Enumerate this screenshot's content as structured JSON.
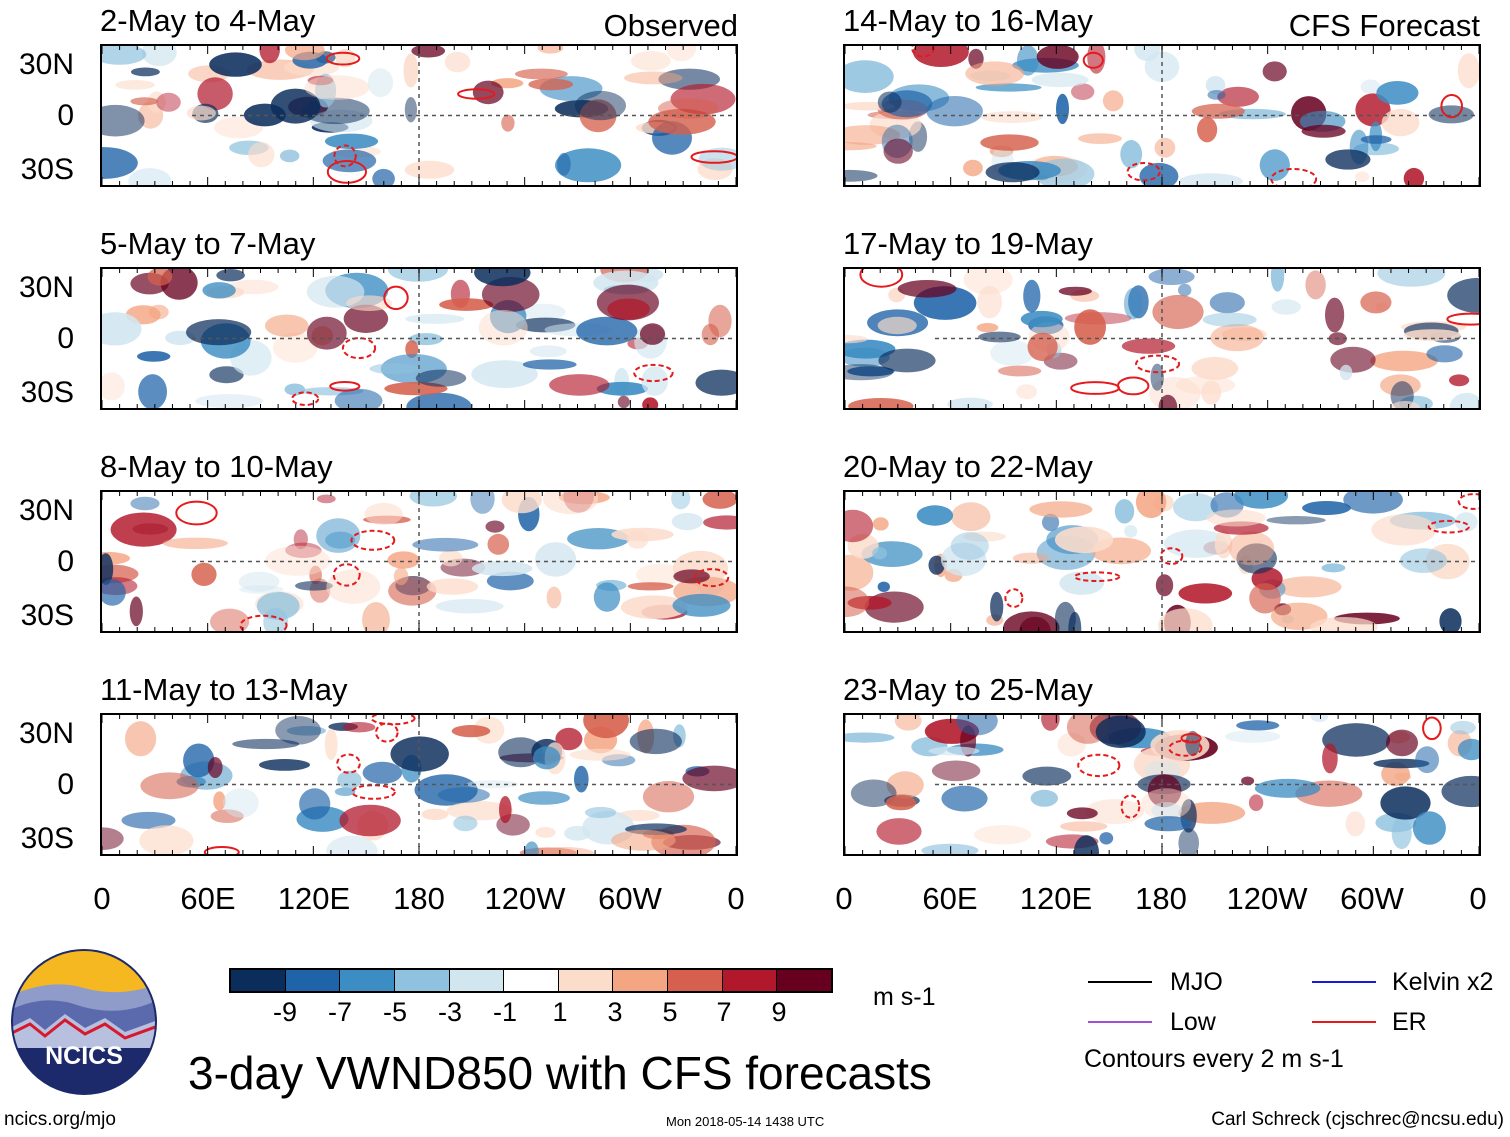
{
  "title": "3-day VWND850 with CFS forecasts",
  "observed_label": "Observed",
  "forecast_label": "CFS Forecast",
  "panels_left": [
    {
      "title": "2-May to 4-May"
    },
    {
      "title": "5-May to 7-May"
    },
    {
      "title": "8-May to 10-May"
    },
    {
      "title": "11-May to 13-May"
    }
  ],
  "panels_right": [
    {
      "title": "14-May to 16-May"
    },
    {
      "title": "17-May to 19-May"
    },
    {
      "title": "20-May to 22-May"
    },
    {
      "title": "23-May to 25-May"
    }
  ],
  "lat_labels": [
    "30N",
    "0",
    "30S"
  ],
  "lon_labels": [
    "0",
    "60E",
    "120E",
    "180",
    "120W",
    "60W",
    "0"
  ],
  "colorbar": {
    "colors": [
      "#0b2d5c",
      "#1f63a8",
      "#3c8dc3",
      "#8fc2de",
      "#d2e6f0",
      "#ffffff",
      "#fcdccb",
      "#f4a582",
      "#d6604d",
      "#b2182b",
      "#67001f"
    ],
    "labels": [
      "-9",
      "-7",
      "-5",
      "-3",
      "-1",
      "1",
      "3",
      "5",
      "7",
      "9"
    ],
    "units": "m s-1"
  },
  "legend": {
    "mjo": {
      "label": "MJO",
      "color": "#000000"
    },
    "kelvin": {
      "label": "Kelvin x2",
      "color": "#1a1adb"
    },
    "low": {
      "label": "Low",
      "color": "#a24fd6"
    },
    "er": {
      "label": "ER",
      "color": "#e41a1c"
    },
    "note": "Contours every 2 m s-1"
  },
  "logo_text": "NCICS",
  "footer": {
    "left": "ncics.org/mjo",
    "center": "Mon 2018-05-14 1438 UTC",
    "right": "Carl Schreck (cjschrec@ncsu.edu)"
  }
}
